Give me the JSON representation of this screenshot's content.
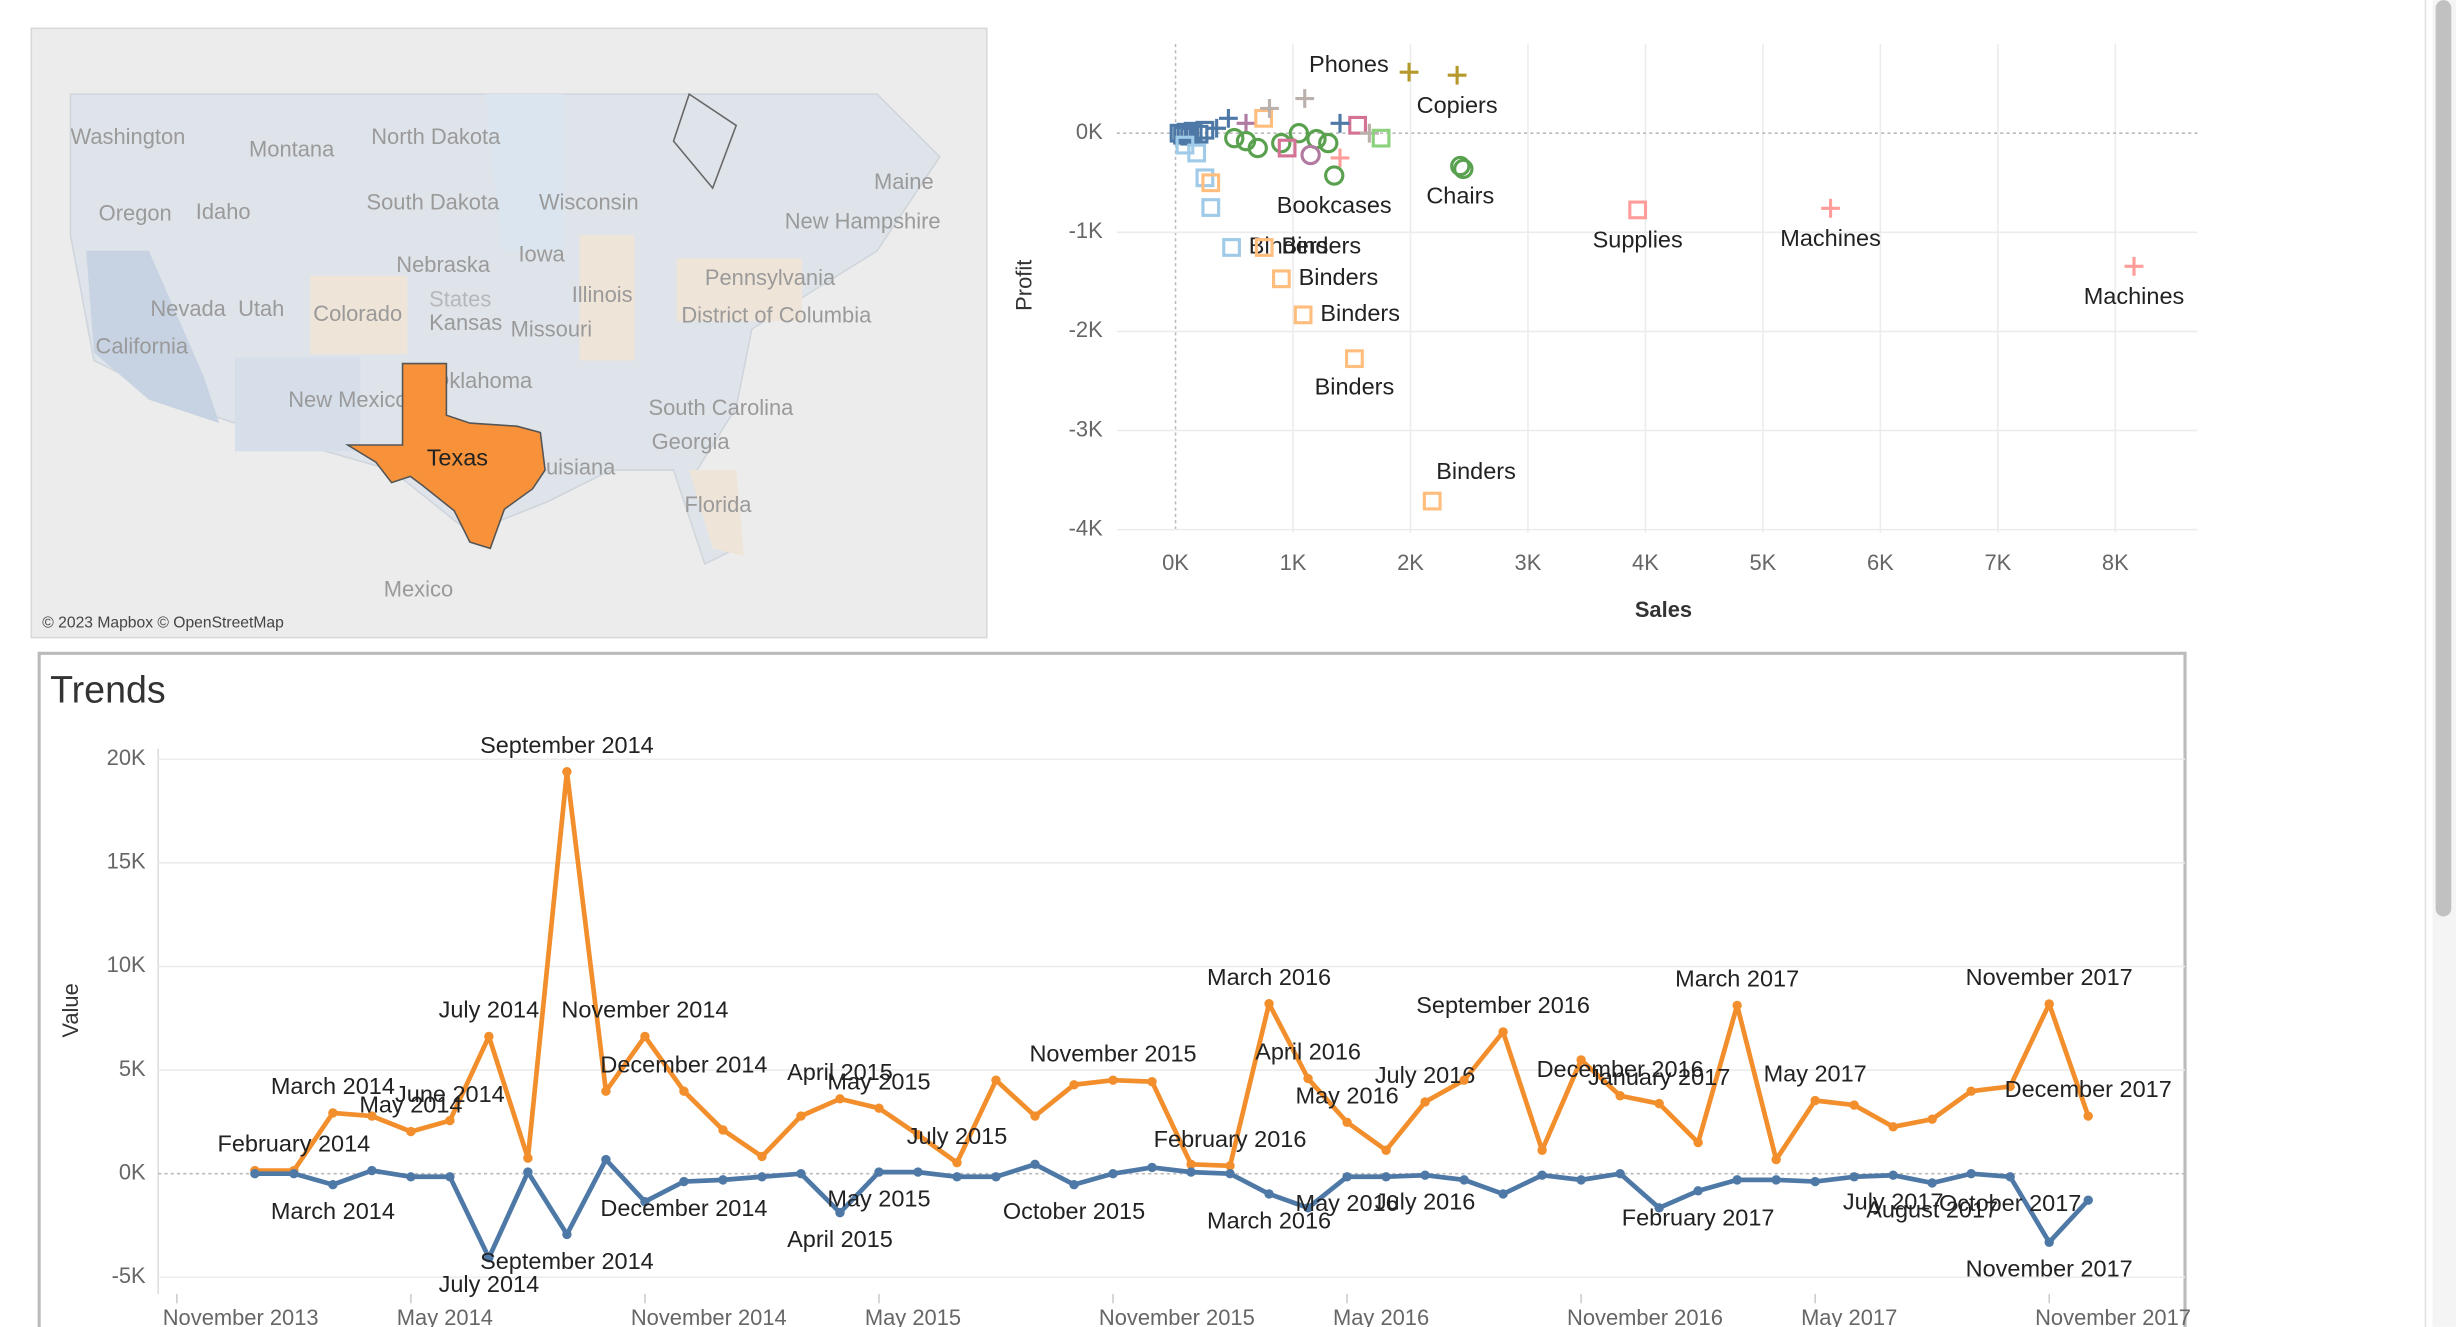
{
  "map": {
    "labels": [
      "Washington",
      "Montana",
      "North Dakota",
      "Oregon",
      "Idaho",
      "South Dakota",
      "Wisconsin",
      "Maine",
      "New Hampshire",
      "Nebraska",
      "Iowa",
      "Pennsylvania",
      "Nevada",
      "Utah",
      "Colorado",
      "Kansas",
      "Missouri",
      "Illinois",
      "District of Columbia",
      "California",
      "States",
      "New Mexico",
      "Oklahoma",
      "Louisiana",
      "South Carolina",
      "Georgia",
      "Florida",
      "Mexico"
    ],
    "highlight_label": "Texas",
    "attribution": "© 2023 Mapbox © OpenStreetMap"
  },
  "chart_data": [
    {
      "type": "scatter",
      "xlabel": "Sales",
      "ylabel": "Profit",
      "grid": true,
      "xlim": [
        -500,
        8700
      ],
      "ylim": [
        -4300,
        900
      ],
      "xticks": [
        {
          "value": 0,
          "label": "0K"
        },
        {
          "value": 1000,
          "label": "1K"
        },
        {
          "value": 2000,
          "label": "2K"
        },
        {
          "value": 3000,
          "label": "3K"
        },
        {
          "value": 4000,
          "label": "4K"
        },
        {
          "value": 5000,
          "label": "5K"
        },
        {
          "value": 6000,
          "label": "6K"
        },
        {
          "value": 7000,
          "label": "7K"
        },
        {
          "value": 8000,
          "label": "8K"
        }
      ],
      "yticks": [
        {
          "value": 0,
          "label": "0K"
        },
        {
          "value": -1000,
          "label": "-1K"
        },
        {
          "value": -2000,
          "label": "-2K"
        },
        {
          "value": -3000,
          "label": "-3K"
        },
        {
          "value": -4000,
          "label": "-4K"
        }
      ],
      "x": [
        30,
        60,
        90,
        120,
        150,
        200,
        250,
        80,
        180,
        250,
        300,
        300,
        350,
        450,
        600,
        750,
        800,
        1100,
        900,
        1050,
        1200,
        1300,
        700,
        600,
        500,
        1150,
        1400,
        1550,
        1650,
        1750,
        1400,
        950,
        1988,
        2397,
        2424,
        2450,
        1351,
        3934,
        5576,
        8159,
        477,
        755,
        901,
        1086,
        1523,
        2185
      ],
      "values": [
        0,
        -20,
        10,
        -30,
        20,
        -10,
        30,
        -120,
        -200,
        -450,
        -750,
        -500,
        50,
        150,
        100,
        150,
        250,
        350,
        -100,
        0,
        -60,
        -100,
        -150,
        -80,
        -50,
        -220,
        -250,
        80,
        0,
        -50,
        100,
        -150,
        616,
        585,
        -332,
        -360,
        -427,
        -774,
        -758,
        -1343,
        -1153,
        -1153,
        -1469,
        -1833,
        -2275,
        -3712
      ],
      "point_labels": [
        null,
        null,
        null,
        null,
        null,
        null,
        null,
        null,
        null,
        null,
        null,
        null,
        null,
        null,
        null,
        null,
        null,
        null,
        null,
        null,
        null,
        null,
        null,
        null,
        null,
        null,
        null,
        null,
        null,
        null,
        null,
        null,
        "Phones",
        "Copiers",
        "Chairs",
        null,
        "Bookcases",
        "Supplies",
        "Machines",
        "Machines",
        "Binders",
        "Binders",
        "Binders",
        "Binders",
        "Binders",
        "Binders"
      ],
      "markers": [
        "square",
        "square",
        "square",
        "square",
        "square",
        "square",
        "square",
        "square",
        "square",
        "square",
        "square",
        "square",
        "plus",
        "plus",
        "plus",
        "square",
        "plus",
        "plus",
        "circle",
        "circle",
        "circle",
        "circle",
        "circle",
        "circle",
        "circle",
        "circle",
        "plus",
        "square",
        "plus",
        "square",
        "plus",
        "square",
        "plus",
        "plus",
        "circle",
        "circle",
        "circle",
        "square",
        "plus",
        "plus",
        "square",
        "square",
        "square",
        "square",
        "square",
        "square"
      ],
      "colors": [
        "#4e79a7",
        "#4e79a7",
        "#4e79a7",
        "#4e79a7",
        "#4e79a7",
        "#4e79a7",
        "#4e79a7",
        "#a0cbe8",
        "#a0cbe8",
        "#a0cbe8",
        "#a0cbe8",
        "#ffbe7d",
        "#4e79a7",
        "#4e79a7",
        "#b07aa1",
        "#ffbe7d",
        "#bab0ac",
        "#bab0ac",
        "#59a14f",
        "#59a14f",
        "#59a14f",
        "#59a14f",
        "#59a14f",
        "#59a14f",
        "#59a14f",
        "#b07aa1",
        "#ff9d9a",
        "#d37295",
        "#bab0ac",
        "#8cd17d",
        "#4e79a7",
        "#d37295",
        "#b6992d",
        "#b6992d",
        "#59a14f",
        "#59a14f",
        "#59a14f",
        "#ff9d9a",
        "#ff9d9a",
        "#ff9d9a",
        "#a0cbe8",
        "#ffbe7d",
        "#ffbe7d",
        "#ffbe7d",
        "#ffbe7d",
        "#ffbe7d"
      ]
    },
    {
      "type": "line",
      "title": "Trends",
      "ylabel": "Value",
      "grid": true,
      "x": [
        "2014-01",
        "2014-02",
        "2014-03",
        "2014-04",
        "2014-05",
        "2014-06",
        "2014-07",
        "2014-08",
        "2014-09",
        "2014-10",
        "2014-11",
        "2014-12",
        "2015-01",
        "2015-02",
        "2015-03",
        "2015-04",
        "2015-05",
        "2015-06",
        "2015-07",
        "2015-08",
        "2015-09",
        "2015-10",
        "2015-11",
        "2015-12",
        "2016-01",
        "2016-02",
        "2016-03",
        "2016-04",
        "2016-05",
        "2016-06",
        "2016-07",
        "2016-08",
        "2016-09",
        "2016-10",
        "2016-11",
        "2016-12",
        "2017-01",
        "2017-02",
        "2017-03",
        "2017-04",
        "2017-05",
        "2017-06",
        "2017-07",
        "2017-08",
        "2017-09",
        "2017-10",
        "2017-11",
        "2017-12"
      ],
      "xlim": [
        "2013-10",
        "2018-02"
      ],
      "xticks": [
        {
          "value": "2013-11",
          "label": "November 2013"
        },
        {
          "value": "2014-05",
          "label": "May 2014"
        },
        {
          "value": "2014-11",
          "label": "November 2014"
        },
        {
          "value": "2015-05",
          "label": "May 2015"
        },
        {
          "value": "2015-11",
          "label": "November 2015"
        },
        {
          "value": "2016-05",
          "label": "May 2016"
        },
        {
          "value": "2016-11",
          "label": "November 2016"
        },
        {
          "value": "2017-05",
          "label": "May 2017"
        },
        {
          "value": "2017-11",
          "label": "November 2017"
        }
      ],
      "ylim": [
        -5200,
        20500
      ],
      "yticks": [
        {
          "value": -5000,
          "label": "-5K"
        },
        {
          "value": 0,
          "label": "0K"
        },
        {
          "value": 5000,
          "label": "5K"
        },
        {
          "value": 10000,
          "label": "10K"
        },
        {
          "value": 15000,
          "label": "15K"
        },
        {
          "value": 20000,
          "label": "20K"
        }
      ],
      "series": [
        {
          "color": "#f28e2b",
          "values": [
            150,
            150,
            2930,
            2780,
            2030,
            2560,
            6620,
            750,
            19400,
            3980,
            6620,
            3980,
            2110,
            830,
            2780,
            3610,
            3160,
            1880,
            530,
            4510,
            2780,
            4290,
            4510,
            4440,
            450,
            380,
            8200,
            4590,
            2480,
            1130,
            3460,
            4510,
            6840,
            1130,
            5490,
            3760,
            3380,
            1500,
            8120,
            680,
            3530,
            3310,
            2260,
            2630,
            3980,
            4210,
            8190,
            2780
          ],
          "point_labels": [
            null,
            "February 2014",
            "March 2014",
            null,
            "May 2014",
            "June 2014",
            "July 2014",
            null,
            "September 2014",
            null,
            "November 2014",
            "December 2014",
            null,
            null,
            null,
            "April 2015",
            "May 2015",
            null,
            "July 2015",
            null,
            null,
            null,
            "November 2015",
            null,
            null,
            "February 2016",
            "March 2016",
            "April 2016",
            "May 2016",
            null,
            "July 2016",
            null,
            "September 2016",
            null,
            null,
            "December 2016",
            "January 2017",
            null,
            "March 2017",
            null,
            "May 2017",
            null,
            null,
            null,
            null,
            null,
            "November 2017",
            "December 2017"
          ]
        },
        {
          "color": "#4e79a7",
          "values": [
            0,
            0,
            -530,
            150,
            -150,
            -150,
            -4060,
            75,
            -2930,
            680,
            -1350,
            -380,
            -300,
            -150,
            0,
            -1880,
            75,
            75,
            -150,
            -150,
            450,
            -530,
            0,
            300,
            75,
            0,
            -980,
            -1650,
            -150,
            -150,
            -75,
            -300,
            -980,
            -75,
            -300,
            0,
            -1650,
            -830,
            -300,
            -300,
            -380,
            -150,
            -75,
            -450,
            0,
            -150,
            -3310,
            -1280
          ],
          "point_labels": [
            null,
            null,
            "March 2014",
            null,
            null,
            null,
            "July 2014",
            null,
            "September 2014",
            null,
            null,
            "December 2014",
            null,
            null,
            null,
            "April 2015",
            "May 2015",
            null,
            null,
            null,
            null,
            "October 2015",
            null,
            null,
            null,
            null,
            "March 2016",
            null,
            "May 2016",
            null,
            "July 2016",
            null,
            null,
            null,
            null,
            null,
            null,
            "February 2017",
            null,
            null,
            null,
            null,
            "July 2017",
            "August 2017",
            null,
            "October 2017",
            "November 2017",
            null
          ]
        }
      ]
    }
  ]
}
